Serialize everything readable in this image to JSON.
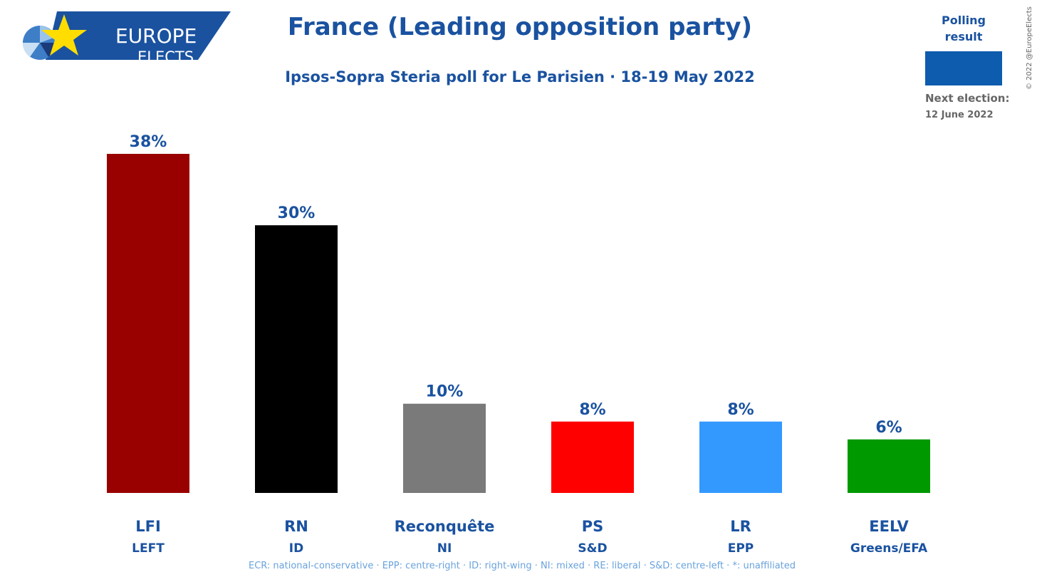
{
  "header": {
    "logo_line1": "EUROPE",
    "logo_line2": "ELECTS",
    "title": "France (Leading opposition party)",
    "subtitle": "Ipsos-Sopra Steria poll for Le Parisien · 18-19 May 2022"
  },
  "legend": {
    "label": "Polling result",
    "swatch_color": "#0d5cad",
    "next_election_label": "Next election:",
    "next_election_date": "12 June 2022"
  },
  "copyright": "© 2022 @EuropeElects",
  "footer": "ECR: national-conservative · EPP: centre-right · ID: right-wing · NI: mixed · RE: liberal · S&D: centre-left · *: unaffiliated",
  "chart_data": {
    "type": "bar",
    "categories": [
      "LFI",
      "RN",
      "Reconquête",
      "PS",
      "LR",
      "EELV"
    ],
    "groups": [
      "LEFT",
      "ID",
      "NI",
      "S&D",
      "EPP",
      "Greens/EFA"
    ],
    "values": [
      38,
      30,
      10,
      8,
      8,
      6
    ],
    "value_labels": [
      "38%",
      "30%",
      "10%",
      "8%",
      "8%",
      "6%"
    ],
    "colors": [
      "#990000",
      "#000000",
      "#7a7a7a",
      "#ff0000",
      "#3399ff",
      "#009900"
    ],
    "title": "France (Leading opposition party)",
    "xlabel": "",
    "ylabel": "",
    "ylim": [
      0,
      38
    ],
    "grid": false
  }
}
